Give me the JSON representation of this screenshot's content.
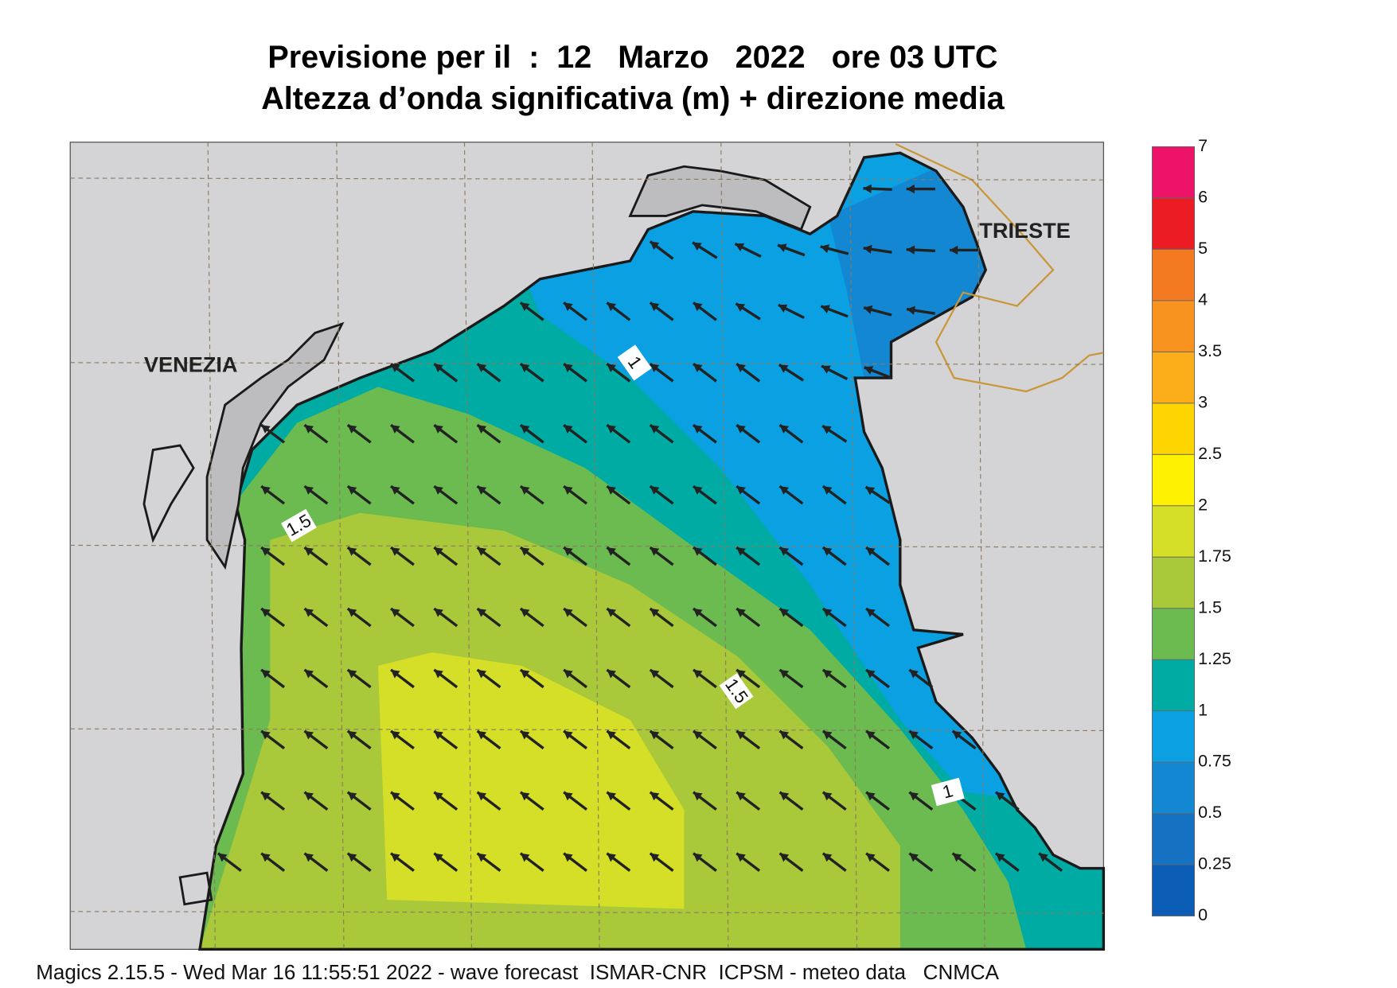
{
  "header": {
    "title_lines": [
      "Previsione per il  :  12   Marzo   2022   ore 03 UTC",
      "Altezza d’onda significativa (m) + direzione media"
    ]
  },
  "map": {
    "places": [
      "VENEZIA",
      "TRIESTE"
    ],
    "contour_labels": [
      "1.5",
      "1",
      "1.5",
      "1"
    ]
  },
  "colorbar": {
    "ticks": [
      0,
      0.25,
      0.5,
      0.75,
      1,
      1.25,
      1.5,
      1.75,
      2,
      2.5,
      3,
      3.5,
      4,
      5,
      6,
      7
    ],
    "colors": [
      "#0a5cb4",
      "#1571c2",
      "#1487d2",
      "#0aa0e2",
      "#00aba4",
      "#6cbb50",
      "#a9c93a",
      "#d5df28",
      "#fff200",
      "#ffd500",
      "#fbad1a",
      "#f7931e",
      "#f47a21",
      "#ec1c24",
      "#ec1369"
    ]
  },
  "footer": "Magics 2.15.5 - Wed Mar 16 11:55:51 2022 - wave forecast  ISMAR-CNR  ICPSM - meteo data   CNMCA"
}
